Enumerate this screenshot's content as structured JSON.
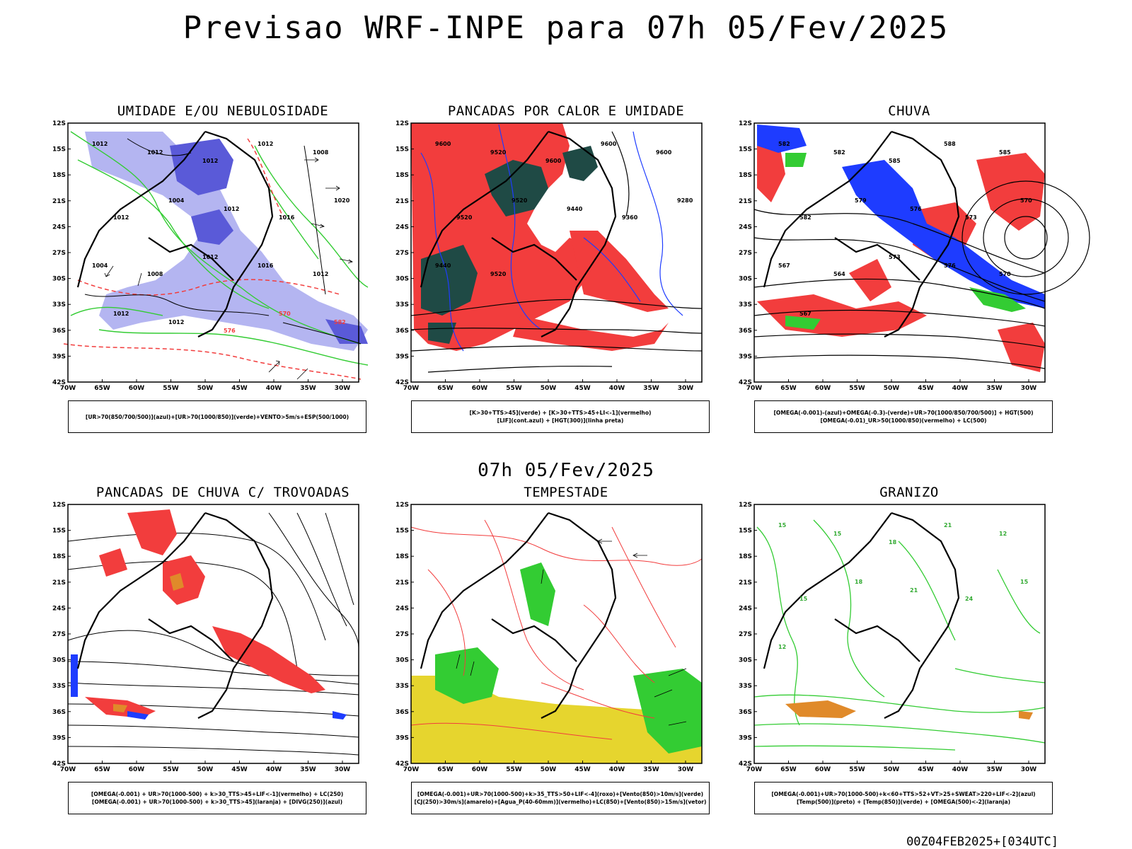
{
  "header": {
    "title": "Previsao WRF-INPE  para 07h 05/Fev/2025"
  },
  "middle": {
    "title": "07h 05/Fev/2025"
  },
  "footer": {
    "run": "00Z04FEB2025+[034UTC]"
  },
  "lat_labels": [
    "12S",
    "15S",
    "18S",
    "21S",
    "24S",
    "27S",
    "30S",
    "33S",
    "36S",
    "39S",
    "42S"
  ],
  "lon_labels": [
    "70W",
    "65W",
    "60W",
    "55W",
    "50W",
    "45W",
    "40W",
    "35W",
    "30W"
  ],
  "colors": {
    "red": "#f23d3d",
    "green": "#33cc33",
    "blue": "#1e3cff",
    "lavender": "#a7a8ee",
    "purple": "#5a5ad8",
    "darkgreen": "#1f4a45",
    "yellow": "#e6d52e",
    "orange": "#e08a2a"
  },
  "panels": [
    {
      "title": "UMIDADE E/OU NEBULOSIDADE",
      "legend": [
        "[UR>70(850/700/500)](azul)+[UR>70(1000/850)](verde)+VENTO>5m/s+ESP(500/1000)"
      ],
      "contour_labels": [
        "1012",
        "1012",
        "1012",
        "1012",
        "1008",
        "1012",
        "1004",
        "1012",
        "1016",
        "1020",
        "1004",
        "1008",
        "1012",
        "1016",
        "1012",
        "1012",
        "1012",
        "576",
        "570",
        "582"
      ]
    },
    {
      "title": "PANCADAS POR CALOR E UMIDADE",
      "legend": [
        "[K>30+TTS>45](verde) + [K>30+TTS>45+LI<-1](vermelho)",
        "[LIF](cont.azul) + [HGT(300)](linha preta)"
      ],
      "contour_labels": [
        "9600",
        "9520",
        "9600",
        "9600",
        "9600",
        "9520",
        "9520",
        "9440",
        "9360",
        "9280",
        "9440",
        "9520"
      ]
    },
    {
      "title": "CHUVA",
      "legend": [
        "[OMEGA(-0.001)-(azul)+OMEGA(-0.3)-(verde)+UR>70(1000/850/700/500)] + HGT(500)",
        "[OMEGA(-0.01)_UR>50(1000/850)(vermelho) + LC(500)"
      ],
      "contour_labels": [
        "582",
        "582",
        "585",
        "588",
        "585",
        "582",
        "579",
        "576",
        "573",
        "570",
        "567",
        "564",
        "573",
        "576",
        "570",
        "567"
      ]
    },
    {
      "title": "PANCADAS DE CHUVA C/ TROVOADAS",
      "legend": [
        "[OMEGA(-0.001) + UR>70(1000-500) + k>30_TTS>45+LIF<-1](vermelho) + LC(250)",
        "[OMEGA(-0.001) + UR>70(1000-500) + k>30_TTS>45](laranja) + [DIVG(250)](azul)"
      ]
    },
    {
      "title": "TEMPESTADE",
      "legend": [
        "[OMEGA(-0.001)+UR>70(1000-500)+k>35_TTS>50+LIF<-4](roxo)+[Vento(850)>10m/s](verde)",
        "[CJ(250)>30m/s](amarelo)+[Agua_P(40-60mm)](vermelho)+LC(850)+[Vento(850)>15m/s](vetor)"
      ]
    },
    {
      "title": "GRANIZO",
      "legend": [
        "[OMEGA(-0.001)+UR>70(1000-500)+k<60+TTS>52+VT>25+SWEAT>220+LIF<-2](azul)",
        "[Temp(500)](preto) + [Temp(850)](verde) + [OMEGA(500)<-2](laranja)"
      ],
      "contour_labels": [
        "15",
        "15",
        "18",
        "21",
        "12",
        "15",
        "18",
        "21",
        "24",
        "15",
        "12"
      ]
    }
  ]
}
